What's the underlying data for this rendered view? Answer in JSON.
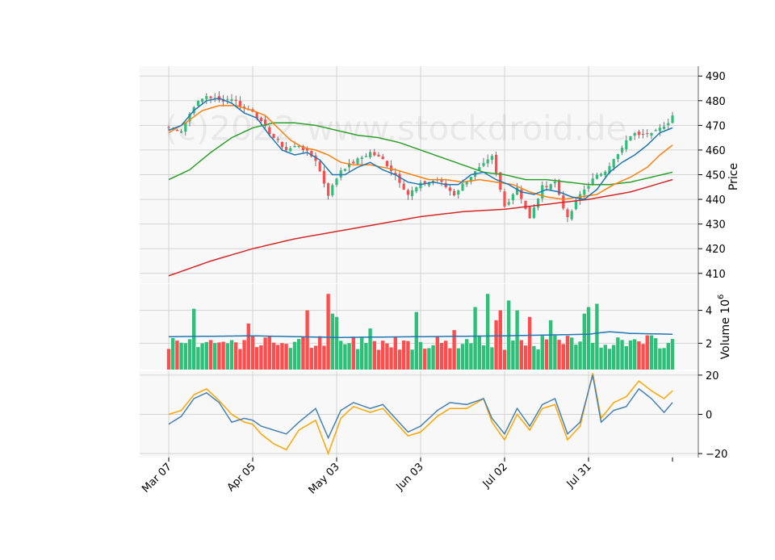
{
  "chart_data": {
    "type": "candlestick",
    "watermark": "(c)2022 www.stockdroid.de",
    "x_tick_labels": [
      "Mar 07",
      "Apr 05",
      "May 03",
      "Jun 03",
      "Jul 02",
      "Jul 31"
    ],
    "x_tick_index": [
      0,
      20,
      40,
      60,
      80,
      100
    ],
    "n_days": 121,
    "colors": {
      "up": "#2ebf78",
      "down": "#ff4d4d",
      "ma_fast": "#1f77b4",
      "ma_mid": "#ff7f0e",
      "ma_slow": "#2ca02c",
      "ma_long": "#d62728",
      "osc_a": "#4682b4",
      "osc_b": "#ffa500",
      "panel_bg": "#f8f8f8",
      "grid": "#d4d4d4"
    },
    "price_panel": {
      "ylabel": "Price",
      "ylim": [
        406,
        494
      ],
      "ticks": [
        410,
        420,
        430,
        440,
        450,
        460,
        470,
        480,
        490
      ],
      "close_anchors": [
        [
          0,
          469
        ],
        [
          3,
          468
        ],
        [
          6,
          478
        ],
        [
          9,
          482
        ],
        [
          12,
          480
        ],
        [
          15,
          481
        ],
        [
          18,
          477
        ],
        [
          20,
          476
        ],
        [
          22,
          471
        ],
        [
          25,
          465
        ],
        [
          28,
          460
        ],
        [
          31,
          462
        ],
        [
          35,
          456
        ],
        [
          38,
          442
        ],
        [
          41,
          452
        ],
        [
          44,
          455
        ],
        [
          48,
          459
        ],
        [
          51,
          456
        ],
        [
          54,
          450
        ],
        [
          57,
          442
        ],
        [
          60,
          446
        ],
        [
          64,
          448
        ],
        [
          68,
          442
        ],
        [
          71,
          448
        ],
        [
          75,
          454
        ],
        [
          77,
          457
        ],
        [
          80,
          437
        ],
        [
          83,
          445
        ],
        [
          86,
          432
        ],
        [
          89,
          445
        ],
        [
          92,
          447
        ],
        [
          95,
          432
        ],
        [
          98,
          442
        ],
        [
          101,
          448
        ],
        [
          104,
          452
        ],
        [
          107,
          458
        ],
        [
          110,
          466
        ],
        [
          113,
          467
        ],
        [
          116,
          468
        ],
        [
          118,
          469
        ],
        [
          120,
          474
        ]
      ],
      "ma_fast_anchors": [
        [
          0,
          468
        ],
        [
          3,
          470
        ],
        [
          6,
          476
        ],
        [
          9,
          480
        ],
        [
          12,
          481
        ],
        [
          15,
          479
        ],
        [
          18,
          475
        ],
        [
          21,
          473
        ],
        [
          24,
          466
        ],
        [
          27,
          460
        ],
        [
          30,
          458
        ],
        [
          33,
          459
        ],
        [
          36,
          456
        ],
        [
          39,
          450
        ],
        [
          42,
          450
        ],
        [
          45,
          453
        ],
        [
          48,
          455
        ],
        [
          51,
          452
        ],
        [
          54,
          450
        ],
        [
          57,
          447
        ],
        [
          60,
          446
        ],
        [
          63,
          447
        ],
        [
          66,
          446
        ],
        [
          69,
          446
        ],
        [
          72,
          450
        ],
        [
          75,
          451
        ],
        [
          78,
          448
        ],
        [
          81,
          446
        ],
        [
          84,
          443
        ],
        [
          87,
          442
        ],
        [
          90,
          444
        ],
        [
          93,
          443
        ],
        [
          96,
          441
        ],
        [
          99,
          440
        ],
        [
          102,
          444
        ],
        [
          105,
          451
        ],
        [
          108,
          455
        ],
        [
          111,
          458
        ],
        [
          114,
          462
        ],
        [
          117,
          467
        ],
        [
          120,
          469
        ]
      ],
      "ma_mid_anchors": [
        [
          0,
          467
        ],
        [
          4,
          471
        ],
        [
          8,
          476
        ],
        [
          12,
          478
        ],
        [
          16,
          478
        ],
        [
          20,
          476
        ],
        [
          23,
          474
        ],
        [
          26,
          469
        ],
        [
          29,
          464
        ],
        [
          32,
          461
        ],
        [
          35,
          460
        ],
        [
          38,
          458
        ],
        [
          41,
          455
        ],
        [
          44,
          454
        ],
        [
          48,
          454
        ],
        [
          51,
          453
        ],
        [
          54,
          452
        ],
        [
          58,
          450
        ],
        [
          62,
          448
        ],
        [
          66,
          448
        ],
        [
          70,
          447
        ],
        [
          74,
          448
        ],
        [
          78,
          447
        ],
        [
          82,
          446
        ],
        [
          86,
          443
        ],
        [
          90,
          441
        ],
        [
          94,
          440
        ],
        [
          98,
          441
        ],
        [
          102,
          442
        ],
        [
          106,
          446
        ],
        [
          110,
          449
        ],
        [
          114,
          453
        ],
        [
          117,
          458
        ],
        [
          120,
          462
        ]
      ],
      "ma_slow_anchors": [
        [
          0,
          448
        ],
        [
          5,
          452
        ],
        [
          10,
          459
        ],
        [
          15,
          465
        ],
        [
          20,
          469
        ],
        [
          25,
          471
        ],
        [
          30,
          471
        ],
        [
          35,
          470
        ],
        [
          40,
          468
        ],
        [
          45,
          466
        ],
        [
          50,
          465
        ],
        [
          55,
          463
        ],
        [
          60,
          460
        ],
        [
          65,
          457
        ],
        [
          70,
          454
        ],
        [
          75,
          451
        ],
        [
          80,
          450
        ],
        [
          85,
          448
        ],
        [
          90,
          448
        ],
        [
          95,
          447
        ],
        [
          100,
          446
        ],
        [
          105,
          446
        ],
        [
          110,
          447
        ],
        [
          115,
          449
        ],
        [
          120,
          451
        ]
      ],
      "ma_long_anchors": [
        [
          0,
          409
        ],
        [
          10,
          415
        ],
        [
          20,
          420
        ],
        [
          30,
          424
        ],
        [
          40,
          427
        ],
        [
          50,
          430
        ],
        [
          60,
          433
        ],
        [
          70,
          435
        ],
        [
          80,
          436
        ],
        [
          90,
          438
        ],
        [
          100,
          440
        ],
        [
          110,
          443
        ],
        [
          120,
          448
        ]
      ]
    },
    "volume_panel": {
      "ylabel": "Volume  10^6",
      "ylim": [
        0.4,
        5.6
      ],
      "ticks": [
        2,
        4
      ],
      "avg_line": [
        [
          0,
          2.4
        ],
        [
          20,
          2.45
        ],
        [
          40,
          2.35
        ],
        [
          60,
          2.4
        ],
        [
          80,
          2.45
        ],
        [
          90,
          2.5
        ],
        [
          100,
          2.55
        ],
        [
          105,
          2.7
        ],
        [
          110,
          2.6
        ],
        [
          120,
          2.55
        ]
      ],
      "spikes": [
        [
          6,
          4.1
        ],
        [
          19,
          3.2
        ],
        [
          33,
          4.0
        ],
        [
          38,
          5.0
        ],
        [
          39,
          3.8
        ],
        [
          40,
          3.6
        ],
        [
          48,
          2.9
        ],
        [
          59,
          3.9
        ],
        [
          68,
          2.8
        ],
        [
          73,
          4.2
        ],
        [
          76,
          5.0
        ],
        [
          78,
          3.4
        ],
        [
          79,
          4.0
        ],
        [
          81,
          4.6
        ],
        [
          83,
          4.0
        ],
        [
          86,
          3.6
        ],
        [
          91,
          3.4
        ],
        [
          99,
          3.8
        ],
        [
          100,
          4.2
        ],
        [
          102,
          4.4
        ],
        [
          108,
          2.2
        ]
      ]
    },
    "oscillator_panel": {
      "ylim": [
        -22,
        22
      ],
      "ticks": [
        -20,
        0,
        20
      ],
      "line_a_anchors": [
        [
          0,
          -5
        ],
        [
          3,
          -1
        ],
        [
          6,
          8
        ],
        [
          9,
          11
        ],
        [
          12,
          6
        ],
        [
          15,
          -4
        ],
        [
          18,
          -2
        ],
        [
          20,
          -3
        ],
        [
          22,
          -6
        ],
        [
          25,
          -8
        ],
        [
          28,
          -10
        ],
        [
          31,
          -4
        ],
        [
          35,
          3
        ],
        [
          38,
          -12
        ],
        [
          41,
          2
        ],
        [
          44,
          6
        ],
        [
          48,
          3
        ],
        [
          51,
          5
        ],
        [
          54,
          -2
        ],
        [
          57,
          -9
        ],
        [
          60,
          -6
        ],
        [
          64,
          2
        ],
        [
          67,
          6
        ],
        [
          71,
          5
        ],
        [
          75,
          8
        ],
        [
          77,
          -2
        ],
        [
          80,
          -10
        ],
        [
          83,
          3
        ],
        [
          86,
          -6
        ],
        [
          89,
          5
        ],
        [
          92,
          8
        ],
        [
          95,
          -10
        ],
        [
          98,
          -4
        ],
        [
          101,
          20
        ],
        [
          103,
          -4
        ],
        [
          106,
          2
        ],
        [
          109,
          4
        ],
        [
          112,
          13
        ],
        [
          115,
          8
        ],
        [
          118,
          1
        ],
        [
          120,
          6
        ]
      ],
      "line_b_anchors": [
        [
          0,
          0
        ],
        [
          3,
          2
        ],
        [
          6,
          10
        ],
        [
          9,
          13
        ],
        [
          12,
          7
        ],
        [
          15,
          0
        ],
        [
          18,
          -4
        ],
        [
          20,
          -5
        ],
        [
          22,
          -10
        ],
        [
          25,
          -15
        ],
        [
          28,
          -18
        ],
        [
          31,
          -8
        ],
        [
          35,
          -3
        ],
        [
          38,
          -20
        ],
        [
          41,
          -2
        ],
        [
          44,
          4
        ],
        [
          48,
          1
        ],
        [
          51,
          3
        ],
        [
          54,
          -4
        ],
        [
          57,
          -11
        ],
        [
          60,
          -9
        ],
        [
          64,
          -1
        ],
        [
          67,
          3
        ],
        [
          71,
          3
        ],
        [
          75,
          8
        ],
        [
          77,
          -4
        ],
        [
          80,
          -13
        ],
        [
          83,
          0
        ],
        [
          86,
          -8
        ],
        [
          89,
          3
        ],
        [
          92,
          5
        ],
        [
          95,
          -13
        ],
        [
          98,
          -6
        ],
        [
          101,
          21
        ],
        [
          103,
          -2
        ],
        [
          106,
          6
        ],
        [
          109,
          9
        ],
        [
          112,
          17
        ],
        [
          115,
          12
        ],
        [
          118,
          8
        ],
        [
          120,
          12
        ]
      ]
    }
  }
}
